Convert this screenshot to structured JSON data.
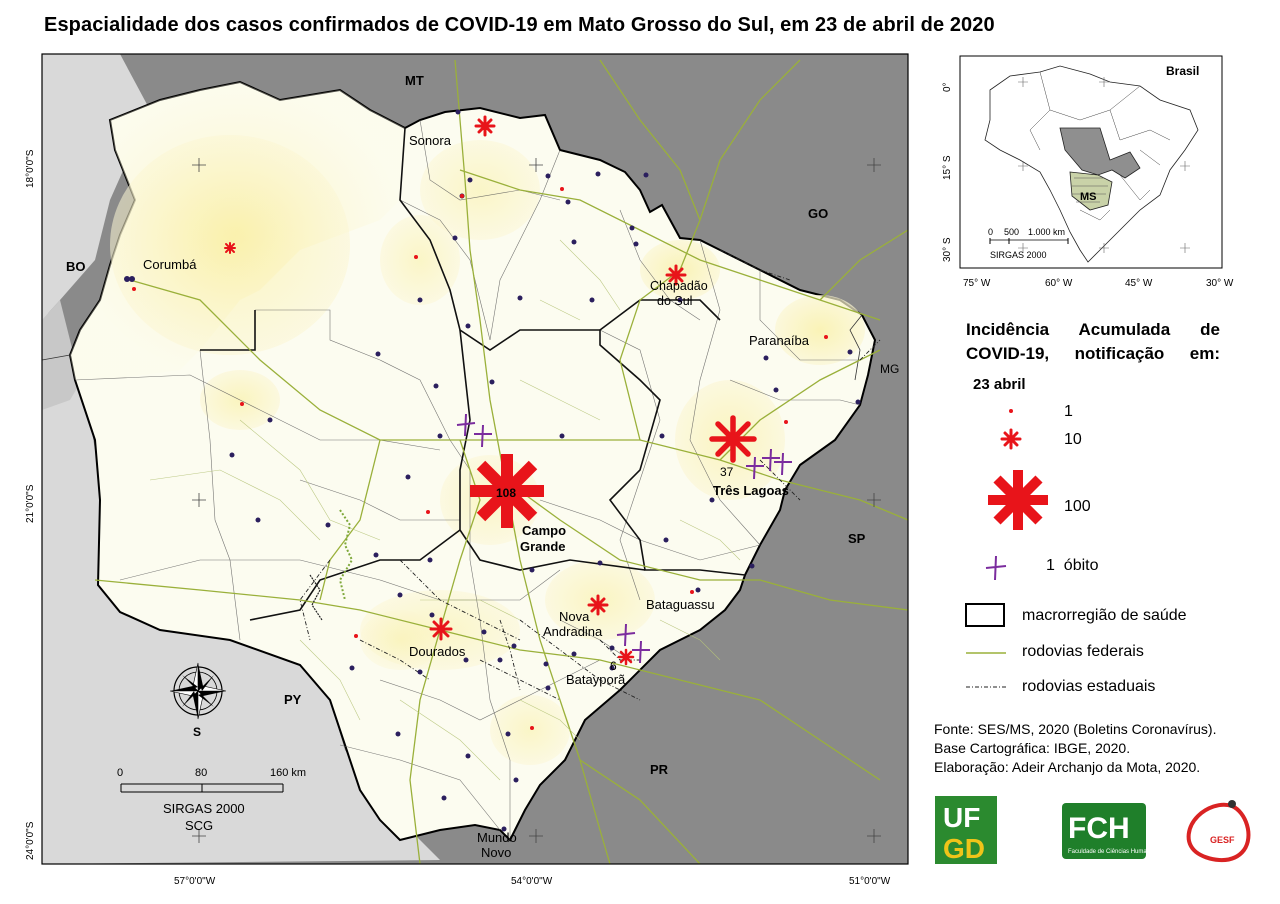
{
  "title": "Espacialidade dos casos confirmados de COVID-19 em Mato Grosso do Sul, em 23 de abril de 2020",
  "neighbors": {
    "MT": "MT",
    "GO": "GO",
    "MG": "MG",
    "SP": "SP",
    "PR": "PR",
    "PY": "PY",
    "BO": "BO"
  },
  "cities": [
    {
      "id": "sonora",
      "name": "Sonora"
    },
    {
      "id": "corumba",
      "name": "Corumbá"
    },
    {
      "id": "chapadao",
      "name": "Chapadão do Sul"
    },
    {
      "id": "paranaiba",
      "name": "Paranaíba"
    },
    {
      "id": "tres-lagoas",
      "name": "Três Lagoas"
    },
    {
      "id": "campo-grande",
      "name": "Campo Grande"
    },
    {
      "id": "nova-andradina",
      "name": "Nova Andradina"
    },
    {
      "id": "bataguassu",
      "name": "Bataguassu"
    },
    {
      "id": "dourados",
      "name": "Dourados"
    },
    {
      "id": "bataypora",
      "name": "Batayporã"
    },
    {
      "id": "mundo-novo",
      "name": "Mundo Novo"
    }
  ],
  "case_counts": {
    "campo_grande": "108",
    "tres_lagoas": "37",
    "bataypora": "6"
  },
  "lat_labels": [
    "18°0'0\"S",
    "21°0'0\"S",
    "24°0'0\"S"
  ],
  "lon_labels": [
    "57°0'0\"W",
    "54°0'0\"W",
    "51°0'0\"W"
  ],
  "scale": {
    "ticks": [
      "0",
      "80",
      "160 km"
    ],
    "datum": "SIRGAS 2000",
    "crs": "SCG"
  },
  "north_label": "S",
  "inset": {
    "country": "Brasil",
    "state": "MS",
    "lat_labels": [
      "0°",
      "15° S",
      "30° S"
    ],
    "lon_labels": [
      "75° W",
      "60° W",
      "45° W",
      "30° W"
    ],
    "scale_ticks": [
      "0",
      "500",
      "1.000 km"
    ],
    "datum": "SIRGAS 2000"
  },
  "legend": {
    "title": "Incidência Acumulada de COVID-19, notificação em:",
    "date": "23 abril",
    "sizes": [
      "1",
      "10",
      "100"
    ],
    "death": "1",
    "death_label": "óbito",
    "macro": "macrorregião de saúde",
    "federal": "rodovias federais",
    "state_roads": "rodovias estaduais"
  },
  "source": {
    "line1": "Fonte: SES/MS, 2020 (Boletins Coronavírus).",
    "line2": "Base Cartográfica: IBGE, 2020.",
    "line3": "Elaboração: Adeir Archanjo da Mota, 2020."
  },
  "logos": {
    "ufgd_top": "UF",
    "ufgd_bottom": "GD",
    "fch": "FCH",
    "fch_sub": "Faculdade de Ciências Humanas",
    "gesf": "GESF"
  },
  "colors": {
    "outside": "#8c8c8c",
    "ms_fill": "#fdfdf2",
    "highlight": "#fbf5c8",
    "marker": "#e8141a",
    "death": "#7b2c9e",
    "federal": "#9ab03a",
    "ufgd": "#2b8a2f",
    "fch": "#1f7f2a"
  }
}
